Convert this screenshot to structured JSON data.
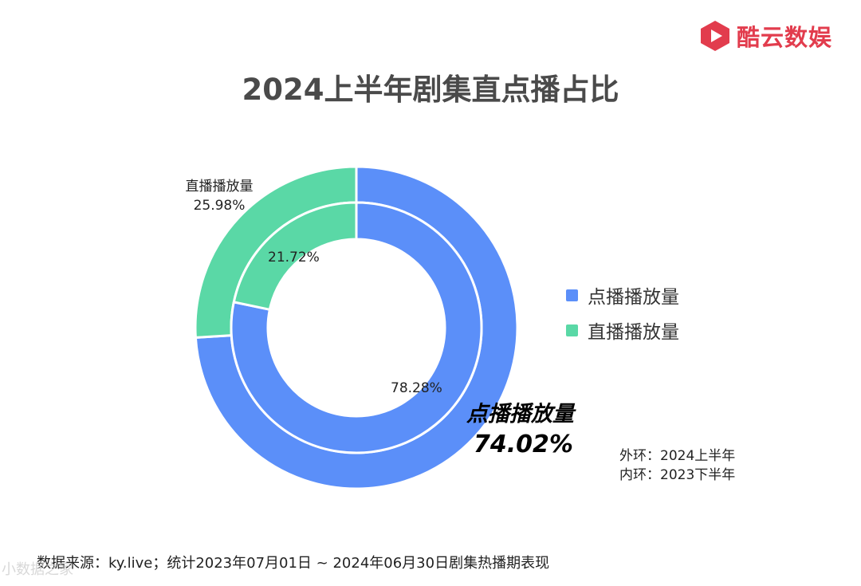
{
  "brand": {
    "name": "酷云数娱",
    "color": "#e23c4d"
  },
  "title": "2024上半年剧集直点播占比",
  "legend": [
    {
      "label": "点播播放量",
      "color": "#5b8ff9"
    },
    {
      "label": "直播播放量",
      "color": "#5ad8a6"
    }
  ],
  "annotations": {
    "outer_live_name": "直播播放量",
    "outer_live_value": "25.98%",
    "inner_live_value": "21.72%",
    "inner_vod_value": "78.28%",
    "outer_vod_name": "点播播放量",
    "outer_vod_value": "74.02%",
    "ring_outer_note": "外环：2024上半年",
    "ring_inner_note": "内环：2023下半年"
  },
  "footer": "数据来源：ky.live；统计2023年07月01日 ~ 2024年06月30日剧集热播期表现",
  "watermark": "小数据之家",
  "chart_data": {
    "type": "pie",
    "subtype": "nested-donut",
    "title": "2024上半年剧集直点播占比",
    "rings": [
      {
        "name": "外环：2024上半年",
        "slices": [
          {
            "label": "点播播放量",
            "value": 74.02,
            "color": "#5b8ff9"
          },
          {
            "label": "直播播放量",
            "value": 25.98,
            "color": "#5ad8a6"
          }
        ]
      },
      {
        "name": "内环：2023下半年",
        "slices": [
          {
            "label": "点播播放量",
            "value": 78.28,
            "color": "#5b8ff9"
          },
          {
            "label": "直播播放量",
            "value": 21.72,
            "color": "#5ad8a6"
          }
        ]
      }
    ],
    "legend_position": "right"
  }
}
